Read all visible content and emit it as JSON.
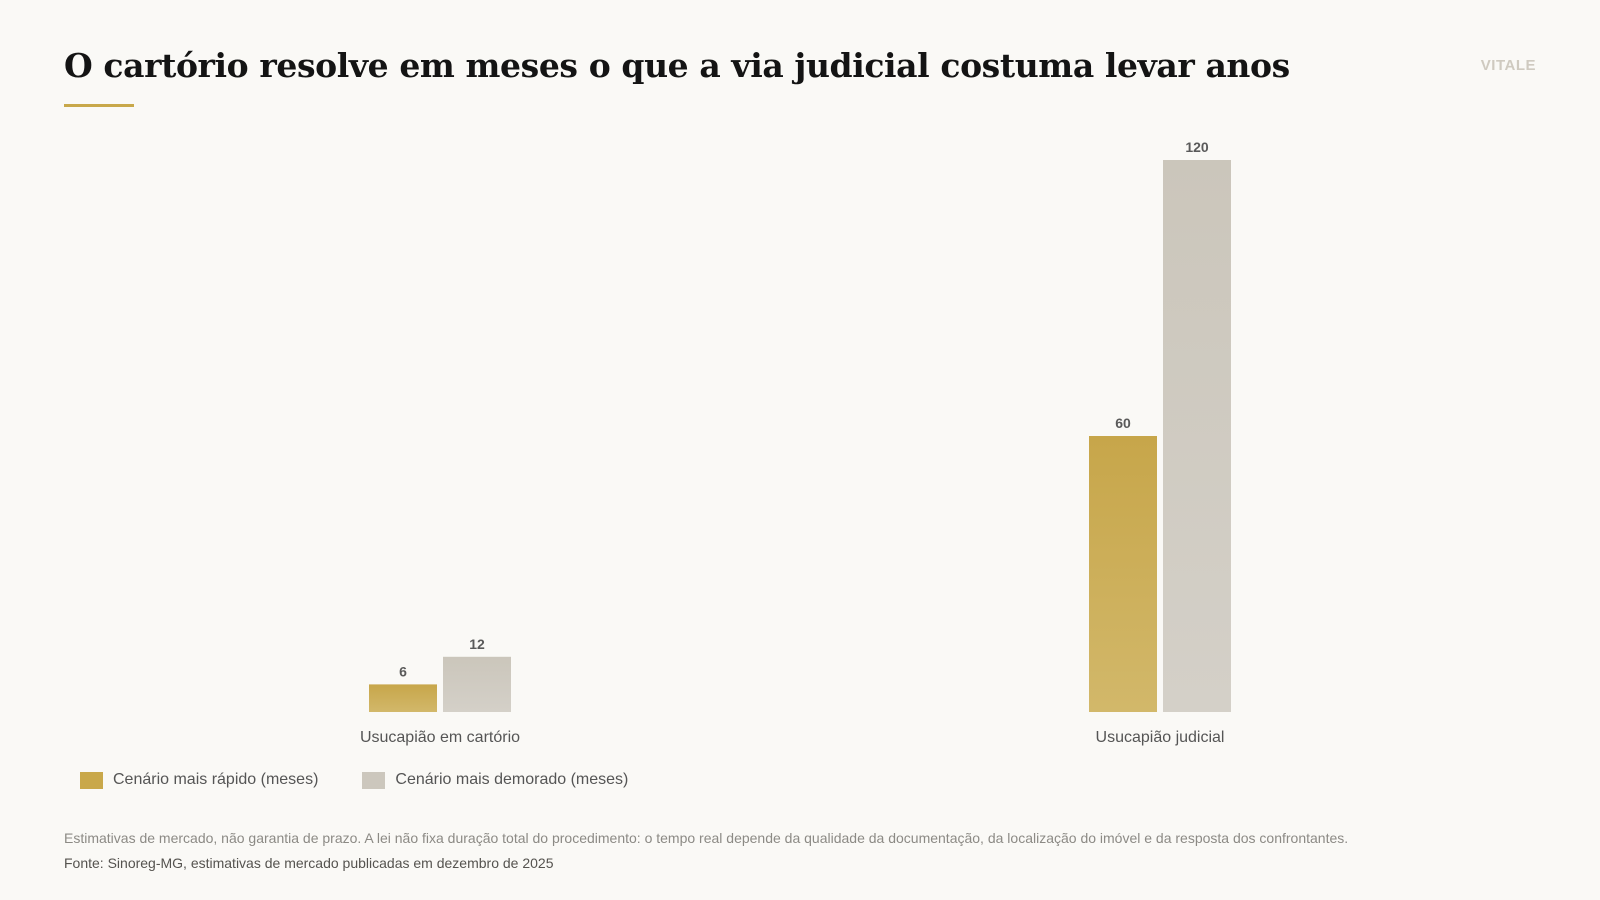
{
  "title": "O cartório resolve em meses o que a via judicial costuma levar anos",
  "brand": "VITALE",
  "note": "Estimativas de mercado, não garantia de prazo. A lei não fixa duração total do procedimento: o tempo real depende da qualidade da documentação, da localização do imóvel e da resposta dos confrontantes.",
  "source": "Fonte: Sinoreg-MG, estimativas de mercado publicadas em dezembro de 2025",
  "colors": {
    "accent": "#c8a84a",
    "series_fast": "#c9a84a",
    "series_slow": "#ccc7bd",
    "title": "#141414",
    "background": "#faf9f6"
  },
  "chart_data": {
    "type": "bar",
    "categories": [
      "Usucapião em cartório",
      "Usucapião judicial"
    ],
    "series": [
      {
        "name": "Cenário mais rápido (meses)",
        "values": [
          6,
          60
        ]
      },
      {
        "name": "Cenário mais demorado (meses)",
        "values": [
          12,
          120
        ]
      }
    ],
    "ylim": [
      0,
      120
    ],
    "grid": false,
    "legend_position": "bottom-left",
    "data_labels": true
  }
}
